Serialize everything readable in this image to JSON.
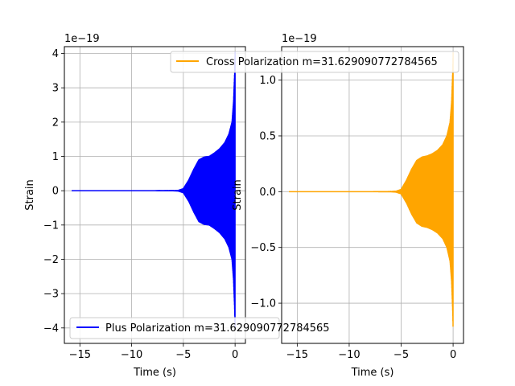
{
  "chart_data": [
    {
      "type": "line",
      "series": [
        {
          "name": "Plus Polarization m=31.629090772784565",
          "color": "#0000ff",
          "envelope": {
            "t": [
              -15.8,
              -8,
              -6,
              -5.5,
              -5,
              -4.5,
              -4,
              -3.5,
              -3,
              -2.5,
              -2,
              -1.5,
              -1,
              -0.6,
              -0.3,
              -0.15,
              -0.05,
              0
            ],
            "upper": [
              0,
              0,
              0.002,
              0.01,
              0.06,
              0.3,
              0.62,
              0.9,
              0.98,
              1.0,
              1.1,
              1.22,
              1.4,
              1.65,
              2.0,
              2.6,
              3.4,
              4.05
            ],
            "lower": [
              0,
              0,
              -0.002,
              -0.01,
              -0.06,
              -0.3,
              -0.62,
              -0.9,
              -0.98,
              -1.0,
              -1.1,
              -1.22,
              -1.4,
              -1.65,
              -2.0,
              -2.6,
              -3.4,
              -4.1
            ]
          }
        }
      ],
      "xlabel": "Time (s)",
      "ylabel": "Strain",
      "offset_label": "1e−19",
      "xlim": [
        -16.5,
        1.0
      ],
      "ylim": [
        -4.45,
        4.2
      ],
      "xticks": [
        -15,
        -10,
        -5,
        0
      ],
      "xtick_labels": [
        "−15",
        "−10",
        "−5",
        "0"
      ],
      "yticks": [
        -4,
        -3,
        -2,
        -1,
        0,
        1,
        2,
        3,
        4
      ],
      "ytick_labels": [
        "−4",
        "−3",
        "−2",
        "−1",
        "0",
        "1",
        "2",
        "3",
        "4"
      ],
      "grid": true,
      "legend": "lower left",
      "legend_text": "Plus Polarization m=31.629090772784565"
    },
    {
      "type": "line",
      "series": [
        {
          "name": "Cross Polarization m=31.629090772784565",
          "color": "#ffa500",
          "envelope": {
            "t": [
              -15.8,
              -8,
              -6,
              -5.5,
              -5,
              -4.5,
              -4,
              -3.5,
              -3,
              -2.5,
              -2,
              -1.5,
              -1,
              -0.6,
              -0.3,
              -0.15,
              -0.05,
              0
            ],
            "upper": [
              0,
              0,
              0.001,
              0.004,
              0.02,
              0.1,
              0.2,
              0.28,
              0.31,
              0.32,
              0.34,
              0.37,
              0.42,
              0.5,
              0.62,
              0.8,
              1.05,
              1.25
            ],
            "lower": [
              0,
              0,
              -0.001,
              -0.004,
              -0.02,
              -0.1,
              -0.2,
              -0.28,
              -0.31,
              -0.32,
              -0.34,
              -0.37,
              -0.42,
              -0.5,
              -0.62,
              -0.8,
              -1.05,
              -1.23
            ]
          }
        }
      ],
      "xlabel": "Time (s)",
      "ylabel": "Strain",
      "offset_label": "1e−19",
      "xlim": [
        -16.5,
        1.0
      ],
      "ylim": [
        -1.36,
        1.3
      ],
      "xticks": [
        -15,
        -10,
        -5,
        0
      ],
      "xtick_labels": [
        "−15",
        "−10",
        "−5",
        "0"
      ],
      "yticks": [
        -1.0,
        -0.5,
        0.0,
        0.5,
        1.0
      ],
      "ytick_labels": [
        "−1.0",
        "−0.5",
        "0.0",
        "0.5",
        "1.0"
      ],
      "grid": true,
      "legend": "upper right",
      "legend_text": "Cross Polarization m=31.629090772784565"
    }
  ]
}
